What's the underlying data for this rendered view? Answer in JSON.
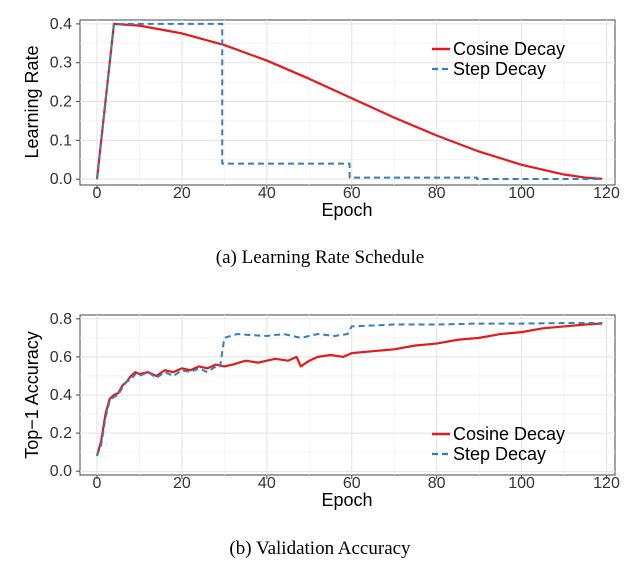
{
  "colors": {
    "cosine": "#e41a1c",
    "step": "#377eb8"
  },
  "chart_data": [
    {
      "type": "line",
      "caption": "(a) Learning Rate Schedule",
      "xlabel": "Epoch",
      "ylabel": "Learning Rate",
      "xlim": [
        -4,
        122
      ],
      "ylim": [
        -0.015,
        0.41
      ],
      "xticks": [
        0,
        20,
        40,
        60,
        80,
        100,
        120
      ],
      "yticks": [
        0.0,
        0.1,
        0.2,
        0.3,
        0.4
      ],
      "ytick_labels": [
        "0.0",
        "0.1",
        "0.2",
        "0.3",
        "0.4"
      ],
      "grid": true,
      "legend_position": "top-right",
      "series": [
        {
          "name": "Cosine Decay",
          "style": "solid",
          "x": [
            0,
            4,
            10,
            20,
            30,
            40,
            50,
            60,
            70,
            80,
            90,
            100,
            110,
            115,
            119
          ],
          "y": [
            0.0,
            0.4,
            0.3955,
            0.3755,
            0.3455,
            0.3055,
            0.2585,
            0.2085,
            0.1585,
            0.1125,
            0.071,
            0.037,
            0.012,
            0.004,
            0.001
          ]
        },
        {
          "name": "Step Decay",
          "style": "dashed",
          "x": [
            0,
            4,
            29.5,
            29.5,
            59.5,
            59.5,
            89.5,
            89.5,
            119
          ],
          "y": [
            0.0,
            0.4,
            0.4,
            0.04,
            0.04,
            0.004,
            0.004,
            0.0004,
            0.0004
          ]
        }
      ]
    },
    {
      "type": "line",
      "caption": "(b) Validation Accuracy",
      "xlabel": "Epoch",
      "ylabel": "Top−1 Accuracy",
      "xlim": [
        -4,
        122
      ],
      "ylim": [
        -0.02,
        0.82
      ],
      "xticks": [
        0,
        20,
        40,
        60,
        80,
        100,
        120
      ],
      "yticks": [
        0.0,
        0.2,
        0.4,
        0.6,
        0.8
      ],
      "ytick_labels": [
        "0.0",
        "0.2",
        "0.4",
        "0.6",
        "0.8"
      ],
      "grid": true,
      "legend_position": "bottom-right",
      "series": [
        {
          "name": "Cosine Decay",
          "style": "solid",
          "x": [
            0,
            1,
            2,
            3,
            4,
            5,
            6,
            7,
            8,
            9,
            10,
            12,
            14,
            16,
            18,
            20,
            22,
            24,
            26,
            28,
            30,
            32,
            35,
            38,
            40,
            42,
            45,
            47,
            48,
            50,
            52,
            55,
            58,
            60,
            65,
            70,
            75,
            80,
            85,
            90,
            95,
            100,
            105,
            110,
            115,
            119
          ],
          "y": [
            0.08,
            0.16,
            0.3,
            0.38,
            0.4,
            0.41,
            0.45,
            0.47,
            0.5,
            0.52,
            0.51,
            0.52,
            0.5,
            0.53,
            0.52,
            0.54,
            0.53,
            0.55,
            0.54,
            0.56,
            0.55,
            0.56,
            0.58,
            0.57,
            0.58,
            0.59,
            0.58,
            0.6,
            0.55,
            0.58,
            0.6,
            0.61,
            0.6,
            0.62,
            0.63,
            0.64,
            0.66,
            0.67,
            0.69,
            0.7,
            0.72,
            0.73,
            0.75,
            0.76,
            0.77,
            0.775
          ]
        },
        {
          "name": "Step Decay",
          "style": "dashed",
          "x": [
            0,
            1,
            2,
            3,
            4,
            5,
            6,
            7,
            8,
            9,
            10,
            12,
            14,
            16,
            18,
            20,
            22,
            24,
            26,
            28,
            29,
            30,
            33,
            36,
            40,
            44,
            48,
            52,
            56,
            59,
            60,
            65,
            70,
            80,
            90,
            100,
            110,
            119
          ],
          "y": [
            0.08,
            0.14,
            0.28,
            0.37,
            0.39,
            0.4,
            0.44,
            0.47,
            0.48,
            0.51,
            0.5,
            0.52,
            0.49,
            0.52,
            0.5,
            0.53,
            0.52,
            0.54,
            0.52,
            0.55,
            0.55,
            0.7,
            0.72,
            0.715,
            0.71,
            0.72,
            0.7,
            0.72,
            0.71,
            0.72,
            0.76,
            0.765,
            0.77,
            0.77,
            0.775,
            0.775,
            0.778,
            0.778
          ]
        }
      ]
    }
  ]
}
